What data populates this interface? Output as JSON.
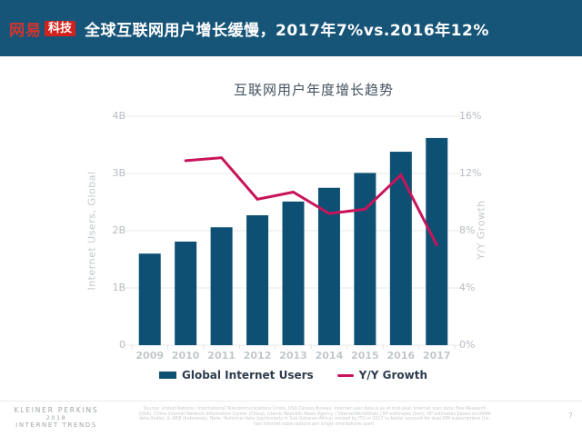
{
  "header": {
    "logo_brand": "网易",
    "logo_sub": "科技",
    "title": "全球互联网用户增长缓慢，2017年7%vs.2016年12%"
  },
  "chart_data": {
    "type": "bar",
    "title": "互联网用户年度增长趋势",
    "categories": [
      "2009",
      "2010",
      "2011",
      "2012",
      "2013",
      "2014",
      "2015",
      "2016",
      "2017"
    ],
    "series": [
      {
        "name": "Global Internet Users",
        "type": "bar",
        "axis": "left",
        "unit": "billions",
        "values": [
          1.6,
          1.81,
          2.06,
          2.27,
          2.51,
          2.75,
          3.01,
          3.38,
          3.62
        ]
      },
      {
        "name": "Y/Y Growth",
        "type": "line",
        "axis": "right",
        "unit": "%",
        "values": [
          null,
          12.9,
          13.1,
          10.2,
          10.7,
          9.2,
          9.5,
          11.9,
          7.0
        ]
      }
    ],
    "left_axis": {
      "label": "Internet Users, Global",
      "ticks": [
        "0",
        "1B",
        "2B",
        "3B",
        "4B"
      ],
      "tick_values": [
        0,
        1,
        2,
        3,
        4
      ],
      "range": [
        0,
        4
      ]
    },
    "right_axis": {
      "label": "Y/Y Growth",
      "ticks": [
        "0%",
        "4%",
        "8%",
        "12%",
        "16%"
      ],
      "tick_values": [
        0,
        4,
        8,
        12,
        16
      ],
      "range": [
        0,
        16
      ]
    },
    "grid": true,
    "legend_position": "bottom"
  },
  "footer": {
    "brand_line1": "KLEINER PERKINS",
    "brand_line2": "2018",
    "brand_line3": "INTERNET TRENDS",
    "source": "Source: United Nations / International Telecommunications Union, USA Census Bureau. Internet user data is as of mid-year. Internet user data: Pew Research (USA), China Internet Network Information Center (China), Islamic Republic News Agency / InternetWorldStats / KP estimates (Iran). KP estimates based on IAMAI data (India), & APJII (Indonesia). Note: Historical data (particularly in Sub-Saharan Africa) revised by ITU in 2017 to better account for dual-SIM subscriptions (i.e. two Internet subscriptions per single smartphone user).",
    "page_number": "7"
  },
  "colors": {
    "header_teal": "#175578",
    "bar_blue": "#0D5073",
    "line_crimson": "#C8145A",
    "brand_red": "#D3221E",
    "grid_gray": "#E8EAEB",
    "tick_gray": "#DFE2E4"
  }
}
